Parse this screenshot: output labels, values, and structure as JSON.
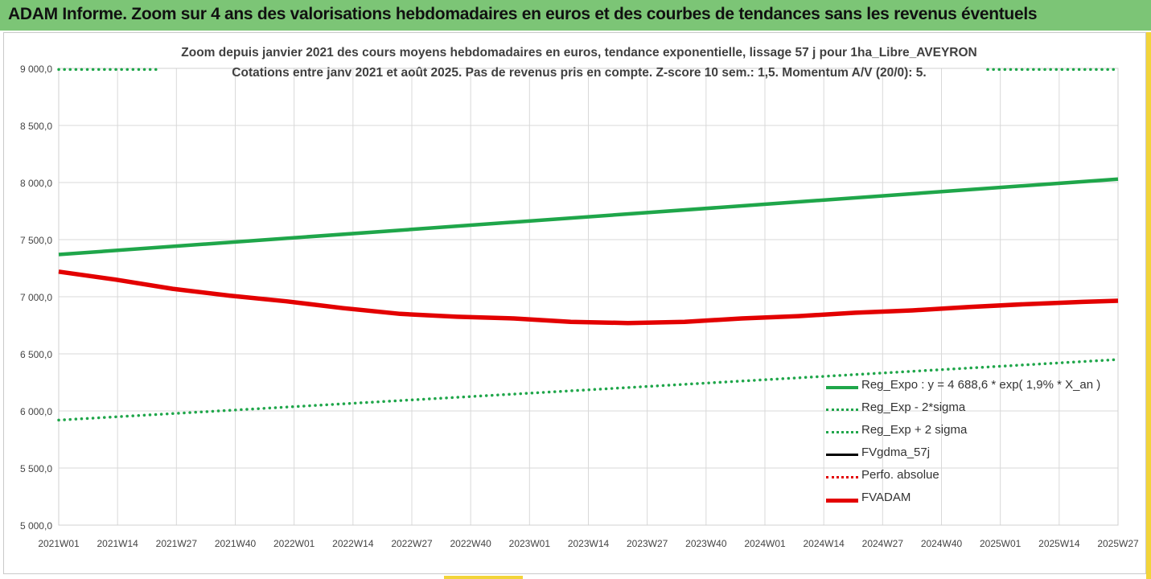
{
  "header": {
    "title": "ADAM Informe. Zoom sur 4 ans des valorisations hebdomadaires en euros et des courbes de tendances sans les revenus éventuels"
  },
  "chart_data": {
    "type": "line",
    "title": "Zoom depuis janvier 2021 des cours moyens hebdomadaires en euros, tendance exponentielle, lissage 57 j pour 1ha_Libre_AVEYRON",
    "subtitle": "Cotations entre janv 2021 et août 2025.  Pas de revenus pris en compte. Z-score 10 sem.: 1,5. Momentum A/V (20/0): 5.",
    "x_ticks": [
      "2021W01",
      "2021W14",
      "2021W27",
      "2021W40",
      "2022W01",
      "2022W14",
      "2022W27",
      "2022W40",
      "2023W01",
      "2023W14",
      "2023W27",
      "2023W40",
      "2024W01",
      "2024W14",
      "2024W27",
      "2024W40",
      "2025W01",
      "2025W14",
      "2025W27"
    ],
    "y_ticks": [
      "9 000,0",
      "8 500,0",
      "8 000,0",
      "7 500,0",
      "7 000,0",
      "6 500,0",
      "6 000,0",
      "5 500,0",
      "5 000,0"
    ],
    "ylim": [
      5000,
      9000
    ],
    "grid": true,
    "legend_position": "bottom-right",
    "series": [
      {
        "name": "Reg_Expo : y = 4 688,6 * exp( 1,9% *  X_an )",
        "color": "#1fa64a",
        "style": "solid",
        "x": [
          0,
          242
        ],
        "y": [
          7370,
          8030
        ]
      },
      {
        "name": "Reg_Exp - 2*sigma",
        "color": "#1fa64a",
        "style": "dotted",
        "x": [
          0,
          242
        ],
        "y": [
          5920,
          6450
        ]
      },
      {
        "name": "Reg_Exp + 2 sigma",
        "color": "#1fa64a",
        "style": "dotted",
        "x": [
          0,
          242
        ],
        "y": [
          8990,
          8990
        ]
      },
      {
        "name": "FVgdma_57j",
        "color": "#000000",
        "style": "solid",
        "x": [
          0,
          13,
          26,
          39,
          52,
          65,
          78,
          91,
          104,
          117,
          130,
          143,
          156,
          169,
          182,
          195,
          208,
          221,
          234,
          242
        ],
        "y": [
          7220,
          7150,
          7070,
          7010,
          6960,
          6900,
          6850,
          6825,
          6810,
          6780,
          6770,
          6780,
          6810,
          6830,
          6860,
          6880,
          6910,
          6935,
          6955,
          6965
        ]
      },
      {
        "name": "Perfo. absolue",
        "color": "#e30000",
        "style": "dotted",
        "x": [],
        "y": []
      },
      {
        "name": "FVADAM",
        "color": "#e30000",
        "style": "solid",
        "x": [
          0,
          13,
          26,
          39,
          52,
          65,
          78,
          91,
          104,
          117,
          130,
          143,
          156,
          169,
          182,
          195,
          208,
          221,
          234,
          242
        ],
        "y": [
          7220,
          7150,
          7070,
          7010,
          6960,
          6900,
          6850,
          6825,
          6810,
          6780,
          6770,
          6780,
          6810,
          6830,
          6860,
          6880,
          6910,
          6935,
          6955,
          6965
        ]
      }
    ]
  }
}
